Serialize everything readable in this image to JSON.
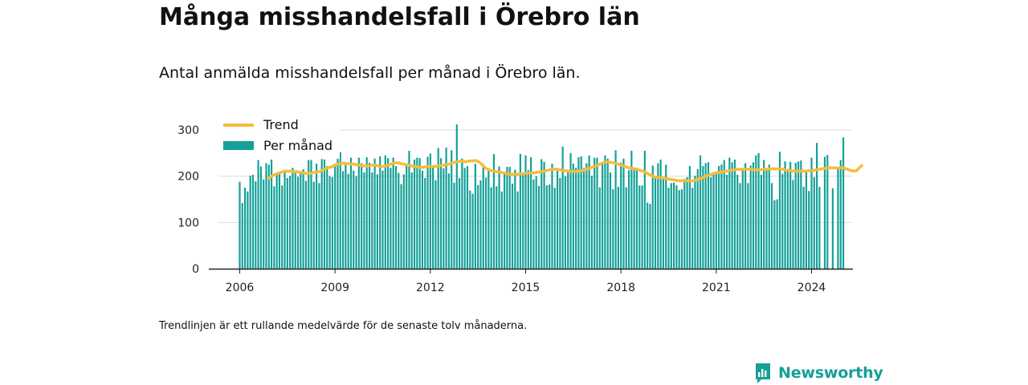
{
  "header": {
    "title": "Många misshandelsfall i Örebro län",
    "subtitle": "Antal anmälda misshandelsfall per månad i Örebro län."
  },
  "footer": {
    "note": "Trendlinjen är ett rullande medelvärde för de senaste tolv månaderna.",
    "brand": "Newsworthy"
  },
  "colors": {
    "bar": "#14a098",
    "trend": "#f6bd3a",
    "grid": "#dddddd",
    "axis": "#222222"
  },
  "chart_data": {
    "type": "bar",
    "x_start": "2006-01",
    "ylim": [
      0,
      300
    ],
    "yticks": [
      0,
      100,
      200,
      300
    ],
    "xticks": [
      "2006",
      "2009",
      "2012",
      "2015",
      "2018",
      "2021",
      "2024"
    ],
    "legend": {
      "position": "top-left",
      "entries": [
        "Trend",
        "Per månad"
      ]
    },
    "grid": true,
    "series": [
      {
        "name": "Per månad",
        "type": "bar",
        "values": [
          188,
          142,
          175,
          167,
          201,
          203,
          189,
          235,
          221,
          193,
          228,
          225,
          236,
          178,
          208,
          210,
          180,
          208,
          196,
          201,
          218,
          210,
          199,
          206,
          215,
          190,
          235,
          235,
          188,
          227,
          185,
          237,
          236,
          222,
          200,
          198,
          222,
          240,
          252,
          211,
          225,
          205,
          240,
          212,
          200,
          240,
          228,
          208,
          241,
          229,
          208,
          238,
          204,
          243,
          212,
          245,
          239,
          218,
          240,
          222,
          207,
          183,
          204,
          222,
          255,
          208,
          236,
          240,
          239,
          212,
          196,
          242,
          249,
          219,
          191,
          261,
          239,
          217,
          262,
          206,
          256,
          186,
          312,
          196,
          238,
          218,
          222,
          169,
          162,
          227,
          181,
          191,
          225,
          197,
          212,
          176,
          248,
          178,
          221,
          167,
          206,
          220,
          220,
          184,
          214,
          167,
          248,
          205,
          245,
          213,
          241,
          193,
          200,
          179,
          237,
          231,
          180,
          182,
          227,
          175,
          212,
          196,
          264,
          200,
          213,
          250,
          227,
          218,
          241,
          243,
          218,
          228,
          245,
          201,
          240,
          240,
          176,
          230,
          245,
          238,
          208,
          172,
          256,
          177,
          229,
          238,
          176,
          213,
          255,
          215,
          218,
          180,
          180,
          255,
          143,
          140,
          223,
          200,
          228,
          236,
          198,
          225,
          175,
          185,
          186,
          180,
          170,
          172,
          194,
          198,
          222,
          175,
          201,
          215,
          245,
          222,
          228,
          230,
          198,
          206,
          210,
          222,
          225,
          235,
          203,
          240,
          230,
          236,
          203,
          185,
          218,
          228,
          185,
          223,
          230,
          245,
          250,
          203,
          235,
          215,
          225,
          185,
          148,
          150,
          253,
          205,
          232,
          210,
          231,
          192,
          229,
          232,
          234,
          177,
          214,
          168,
          240,
          198,
          272,
          177,
          0,
          242,
          246,
          0,
          174,
          0,
          218,
          235,
          284
        ]
      },
      {
        "name": "Trend",
        "type": "line",
        "start": "2006-12",
        "values": [
          196,
          200,
          203,
          205,
          207,
          209,
          211,
          211,
          211,
          210,
          210,
          209,
          208,
          207,
          206,
          206,
          206,
          208,
          209,
          210,
          212,
          215,
          218,
          219,
          221,
          224,
          226,
          227,
          228,
          228,
          227,
          226,
          226,
          225,
          224,
          223,
          222,
          222,
          223,
          224,
          224,
          223,
          221,
          221,
          222,
          224,
          226,
          228,
          229,
          229,
          227,
          226,
          225,
          223,
          222,
          221,
          220,
          219,
          219,
          220,
          221,
          221,
          221,
          221,
          222,
          223,
          224,
          225,
          226,
          228,
          230,
          231,
          232,
          232,
          231,
          232,
          233,
          233,
          234,
          232,
          228,
          222,
          217,
          214,
          212,
          211,
          210,
          209,
          208,
          207,
          205,
          204,
          204,
          204,
          204,
          205,
          205,
          206,
          207,
          207,
          207,
          208,
          209,
          210,
          211,
          212,
          214,
          215,
          215,
          215,
          214,
          213,
          212,
          211,
          210,
          210,
          210,
          211,
          212,
          213,
          215,
          217,
          219,
          221,
          223,
          226,
          228,
          230,
          231,
          230,
          229,
          228,
          226,
          224,
          222,
          220,
          218,
          217,
          216,
          215,
          213,
          211,
          209,
          206,
          203,
          200,
          198,
          197,
          197,
          196,
          195,
          194,
          193,
          192,
          191,
          190,
          190,
          190,
          190,
          190,
          190,
          191,
          193,
          195,
          197,
          200,
          202,
          204,
          206,
          207,
          208,
          209,
          210,
          211,
          212,
          213,
          214,
          215,
          215,
          215,
          215,
          215,
          215,
          214,
          214,
          214,
          214,
          215,
          215,
          216,
          216,
          216,
          216,
          216,
          215,
          214,
          213,
          212,
          211,
          211,
          211,
          211,
          211,
          211,
          212,
          212,
          213,
          214,
          215,
          216,
          217,
          218,
          218,
          218,
          218,
          218,
          218,
          218,
          216,
          214,
          212,
          211,
          212,
          218,
          223
        ]
      }
    ]
  }
}
